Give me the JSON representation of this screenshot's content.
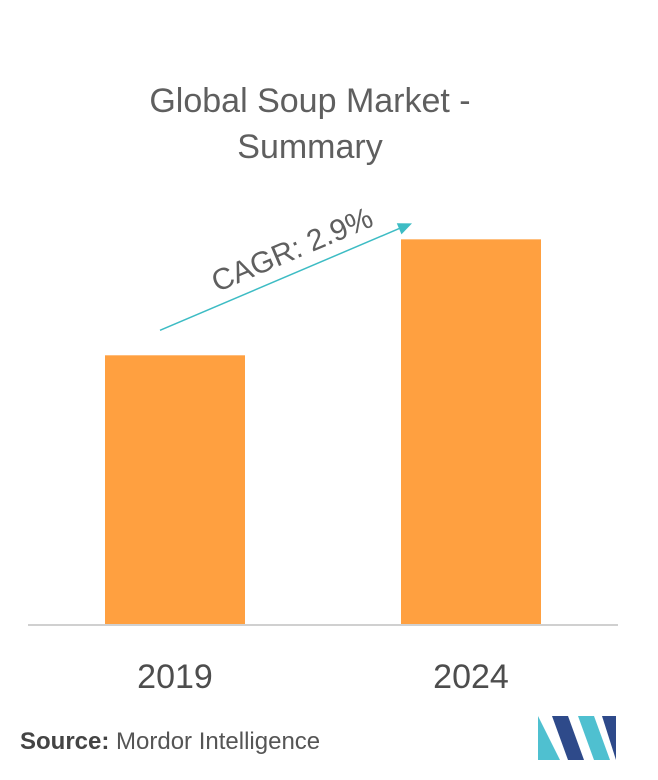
{
  "chart_data": {
    "type": "bar",
    "title": "Global Soup Market - Summary",
    "title_lines": [
      "Global Soup Market -",
      "Summary"
    ],
    "categories": [
      "2019",
      "2024"
    ],
    "values": [
      1.0,
      1.43
    ],
    "ylim": [
      0,
      1.65
    ],
    "bar_color": "#FFA040",
    "axis_color": "#d0d0d0",
    "grid": false,
    "annotation": {
      "text": "CAGR: 2.9%",
      "color": "#3dbcc4"
    }
  },
  "source": {
    "label": "Source:",
    "text": "Mordor Intelligence"
  },
  "logo": {
    "icon": "mordor-intelligence-logo",
    "colors": [
      "#2e4a8a",
      "#4fc0d0"
    ]
  }
}
